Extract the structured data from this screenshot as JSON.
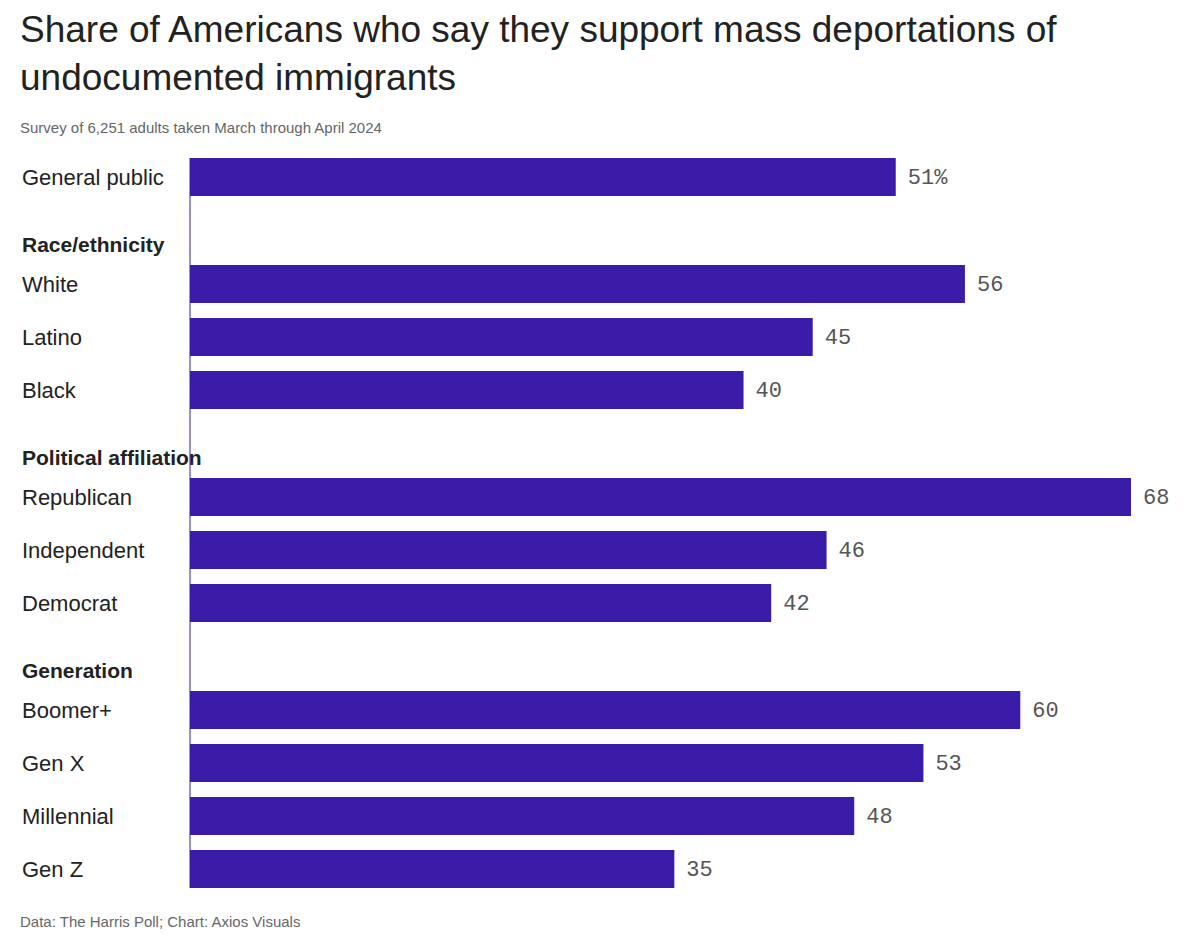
{
  "chart_data": {
    "type": "bar",
    "orientation": "horizontal",
    "title": "Share of Americans who say they support mass deportations of undocumented immigrants",
    "subtitle": "Survey of 6,251 adults taken March through April 2024",
    "source": "Data: The Harris Poll; Chart: Axios Visuals",
    "categories": [
      "General public",
      "White",
      "Latino",
      "Black",
      "Republican",
      "Independent",
      "Democrat",
      "Boomer+",
      "Gen X",
      "Millennial",
      "Gen Z"
    ],
    "groups": [
      null,
      "Race/ethnicity",
      "Race/ethnicity",
      "Race/ethnicity",
      "Political affiliation",
      "Political affiliation",
      "Political affiliation",
      "Generation",
      "Generation",
      "Generation",
      "Generation"
    ],
    "values": [
      51,
      56,
      45,
      40,
      68,
      46,
      42,
      60,
      53,
      48,
      35
    ],
    "value_labels": [
      "51%",
      "56",
      "45",
      "40",
      "68",
      "46",
      "42",
      "60",
      "53",
      "48",
      "35"
    ],
    "color": "#3b1ca9",
    "xlim": [
      0,
      68
    ],
    "data_labels": true,
    "tick_labels": false,
    "grid": false
  }
}
